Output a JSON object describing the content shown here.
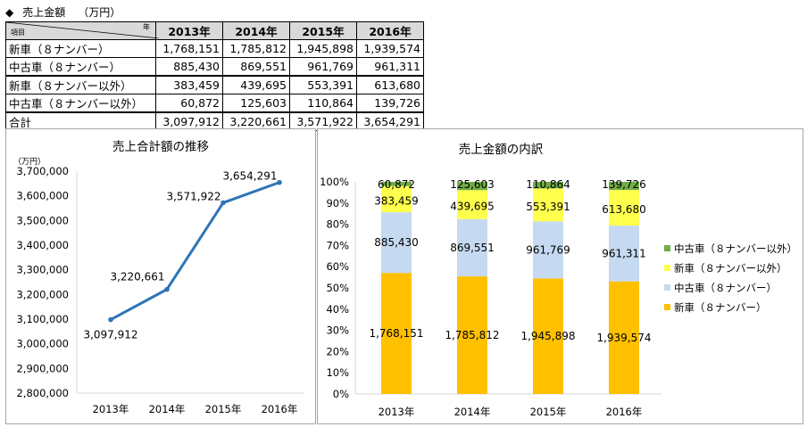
{
  "header": {
    "symbol": "◆",
    "title": "売上金額",
    "unit": "（万円）"
  },
  "table": {
    "corner_item": "項目",
    "corner_year": "年",
    "columns": [
      "2013年",
      "2014年",
      "2015年",
      "2016年"
    ],
    "rows": [
      {
        "label": "新車（８ナンバー）",
        "values": [
          "1,768,151",
          "1,785,812",
          "1,945,898",
          "1,939,574"
        ]
      },
      {
        "label": "中古車（８ナンバー）",
        "values": [
          "885,430",
          "869,551",
          "961,769",
          "961,311"
        ]
      },
      {
        "label": "新車（８ナンバー以外）",
        "values": [
          "383,459",
          "439,695",
          "553,391",
          "613,680"
        ]
      },
      {
        "label": "中古車（８ナンバー以外）",
        "values": [
          "60,872",
          "125,603",
          "110,864",
          "139,726"
        ]
      },
      {
        "label": "合計",
        "values": [
          "3,097,912",
          "3,220,661",
          "3,571,922",
          "3,654,291"
        ]
      }
    ]
  },
  "chart_data": [
    {
      "type": "line",
      "title": "売上合計額の推移",
      "ylabel": "（万円）",
      "categories": [
        "2013年",
        "2014年",
        "2015年",
        "2016年"
      ],
      "series": [
        {
          "values": [
            3097912,
            3220661,
            3571922,
            3654291
          ],
          "labels": [
            "3,097,912",
            "3,220,661",
            "3,571,922",
            "3,654,291"
          ],
          "color": "#2e75b6"
        }
      ],
      "ylim": [
        2800000,
        3700000
      ],
      "yticks": [
        "2,800,000",
        "2,900,000",
        "3,000,000",
        "3,100,000",
        "3,200,000",
        "3,300,000",
        "3,400,000",
        "3,500,000",
        "3,600,000",
        "3,700,000"
      ],
      "grid": false
    },
    {
      "type": "bar",
      "stacked": "percent",
      "title": "売上金額の内訳",
      "categories": [
        "2013年",
        "2014年",
        "2015年",
        "2016年"
      ],
      "series": [
        {
          "name": "新車（８ナンバー）",
          "values": [
            1768151,
            1785812,
            1945898,
            1939574
          ],
          "labels": [
            "1,768,151",
            "1,785,812",
            "1,945,898",
            "1,939,574"
          ],
          "color": "#ffc000"
        },
        {
          "name": "中古車（８ナンバー）",
          "values": [
            885430,
            869551,
            961769,
            961311
          ],
          "labels": [
            "885,430",
            "869,551",
            "961,769",
            "961,311"
          ],
          "color": "#c5d9f1"
        },
        {
          "name": "新車（８ナンバー以外）",
          "values": [
            383459,
            439695,
            553391,
            613680
          ],
          "labels": [
            "383,459",
            "439,695",
            "553,391",
            "613,680"
          ],
          "color": "#ffff4d"
        },
        {
          "name": "中古車（８ナンバー以外）",
          "values": [
            60872,
            125603,
            110864,
            139726
          ],
          "labels": [
            "60,872",
            "125,603",
            "110,864",
            "139,726"
          ],
          "color": "#70ad47"
        }
      ],
      "ylim": [
        0,
        100
      ],
      "yticks": [
        "0%",
        "10%",
        "20%",
        "30%",
        "40%",
        "50%",
        "60%",
        "70%",
        "80%",
        "90%",
        "100%"
      ],
      "legend": "right",
      "grid": false
    }
  ]
}
